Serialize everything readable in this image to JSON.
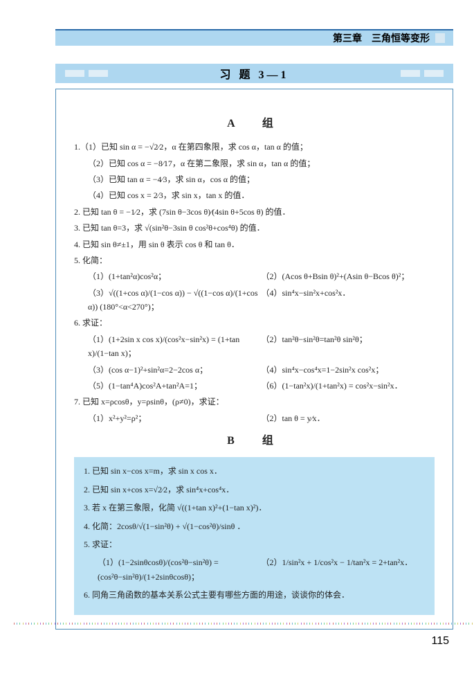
{
  "header": {
    "chapter": "第三章　三角恒等变形",
    "section": "习 题 3—1"
  },
  "group_a_title": "A　组",
  "group_b_title": "B　组",
  "a": {
    "q1": "1.（1）已知 sin α = −√2⁄2，α 在第四象限，求 cos α，tan α 的值；",
    "q1_2": "（2）已知 cos α = −8⁄17，α 在第二象限，求 sin α，tan α 的值；",
    "q1_3": "（3）已知 tan α = −4⁄3，求 sin α，cos α 的值；",
    "q1_4": "（4）已知 cos x = 2⁄3，求 sin x，tan x 的值．",
    "q2": "2. 已知 tan θ = −1⁄2，求 (7sin θ−3cos θ)⁄(4sin θ+5cos θ) 的值．",
    "q3": "3. 已知 tan θ=3，求 √(sin²θ−3sin θ cos²θ+cos⁴θ) 的值．",
    "q4": "4. 已知 sin θ≠±1，用 sin θ 表示 cos θ 和 tan θ．",
    "q5": "5. 化简：",
    "q5_1": "（1）(1+tan²α)cos²α；",
    "q5_2": "（2）(Acos θ+Bsin θ)²+(Asin θ−Bcos θ)²；",
    "q5_3": "（3）√((1+cos α)/(1−cos α)) − √((1−cos α)/(1+cos α))  (180°<α<270°)；",
    "q5_4": "（4）sin⁴x−sin²x+cos²x．",
    "q6": "6. 求证：",
    "q6_1": "（1）(1+2sin x cos x)/(cos²x−sin²x) = (1+tan x)/(1−tan x)；",
    "q6_2": "（2）tan²θ−sin²θ=tan²θ sin²θ；",
    "q6_3": "（3）(cos α−1)²+sin²α=2−2cos α；",
    "q6_4": "（4）sin⁴x−cos⁴x=1−2sin²x cos²x；",
    "q6_5": "（5）(1−tan⁴A)cos²A+tan²A=1；",
    "q6_6": "（6）(1−tan²x)/(1+tan²x) = cos²x−sin²x．",
    "q7": "7. 已知 x=ρcosθ，y=ρsinθ，(ρ≠0)，求证：",
    "q7_1": "（1）x²+y²=ρ²；",
    "q7_2": "（2）tan θ = y⁄x．"
  },
  "b": {
    "q1": "1. 已知 sin x−cos x=m，求 sin x cos x．",
    "q2": "2. 已知 sin x+cos x=√2⁄2，求 sin⁴x+cos⁴x．",
    "q3": "3. 若 x 在第三象限，化简 √((1+tan x)²+(1−tan x)²)．",
    "q4": "4. 化简：2cosθ/√(1−sin²θ) + √(1−cos²θ)/sinθ ．",
    "q5": "5. 求证：",
    "q5_1": "（1）(1−2sinθcosθ)/(cos²θ−sin²θ) = (cos²θ−sin²θ)/(1+2sinθcosθ)；",
    "q5_2": "（2）1/sin²x + 1/cos²x − 1/tan²x = 2+tan²x．",
    "q6": "6. 同角三角函数的基本关系公式主要有哪些方面的用途，谈谈你的体会．"
  },
  "page_number": "115",
  "colors": {
    "header_bg": "#aed7f0",
    "header_border": "#2a6aa8",
    "page_border": "#4d8cb8",
    "b_box_bg": "#bde2f4",
    "dot_colors": [
      "#d46a6a",
      "#6ab0d4",
      "#6ad48a",
      "#d4c76a",
      "#b06ad4"
    ]
  }
}
